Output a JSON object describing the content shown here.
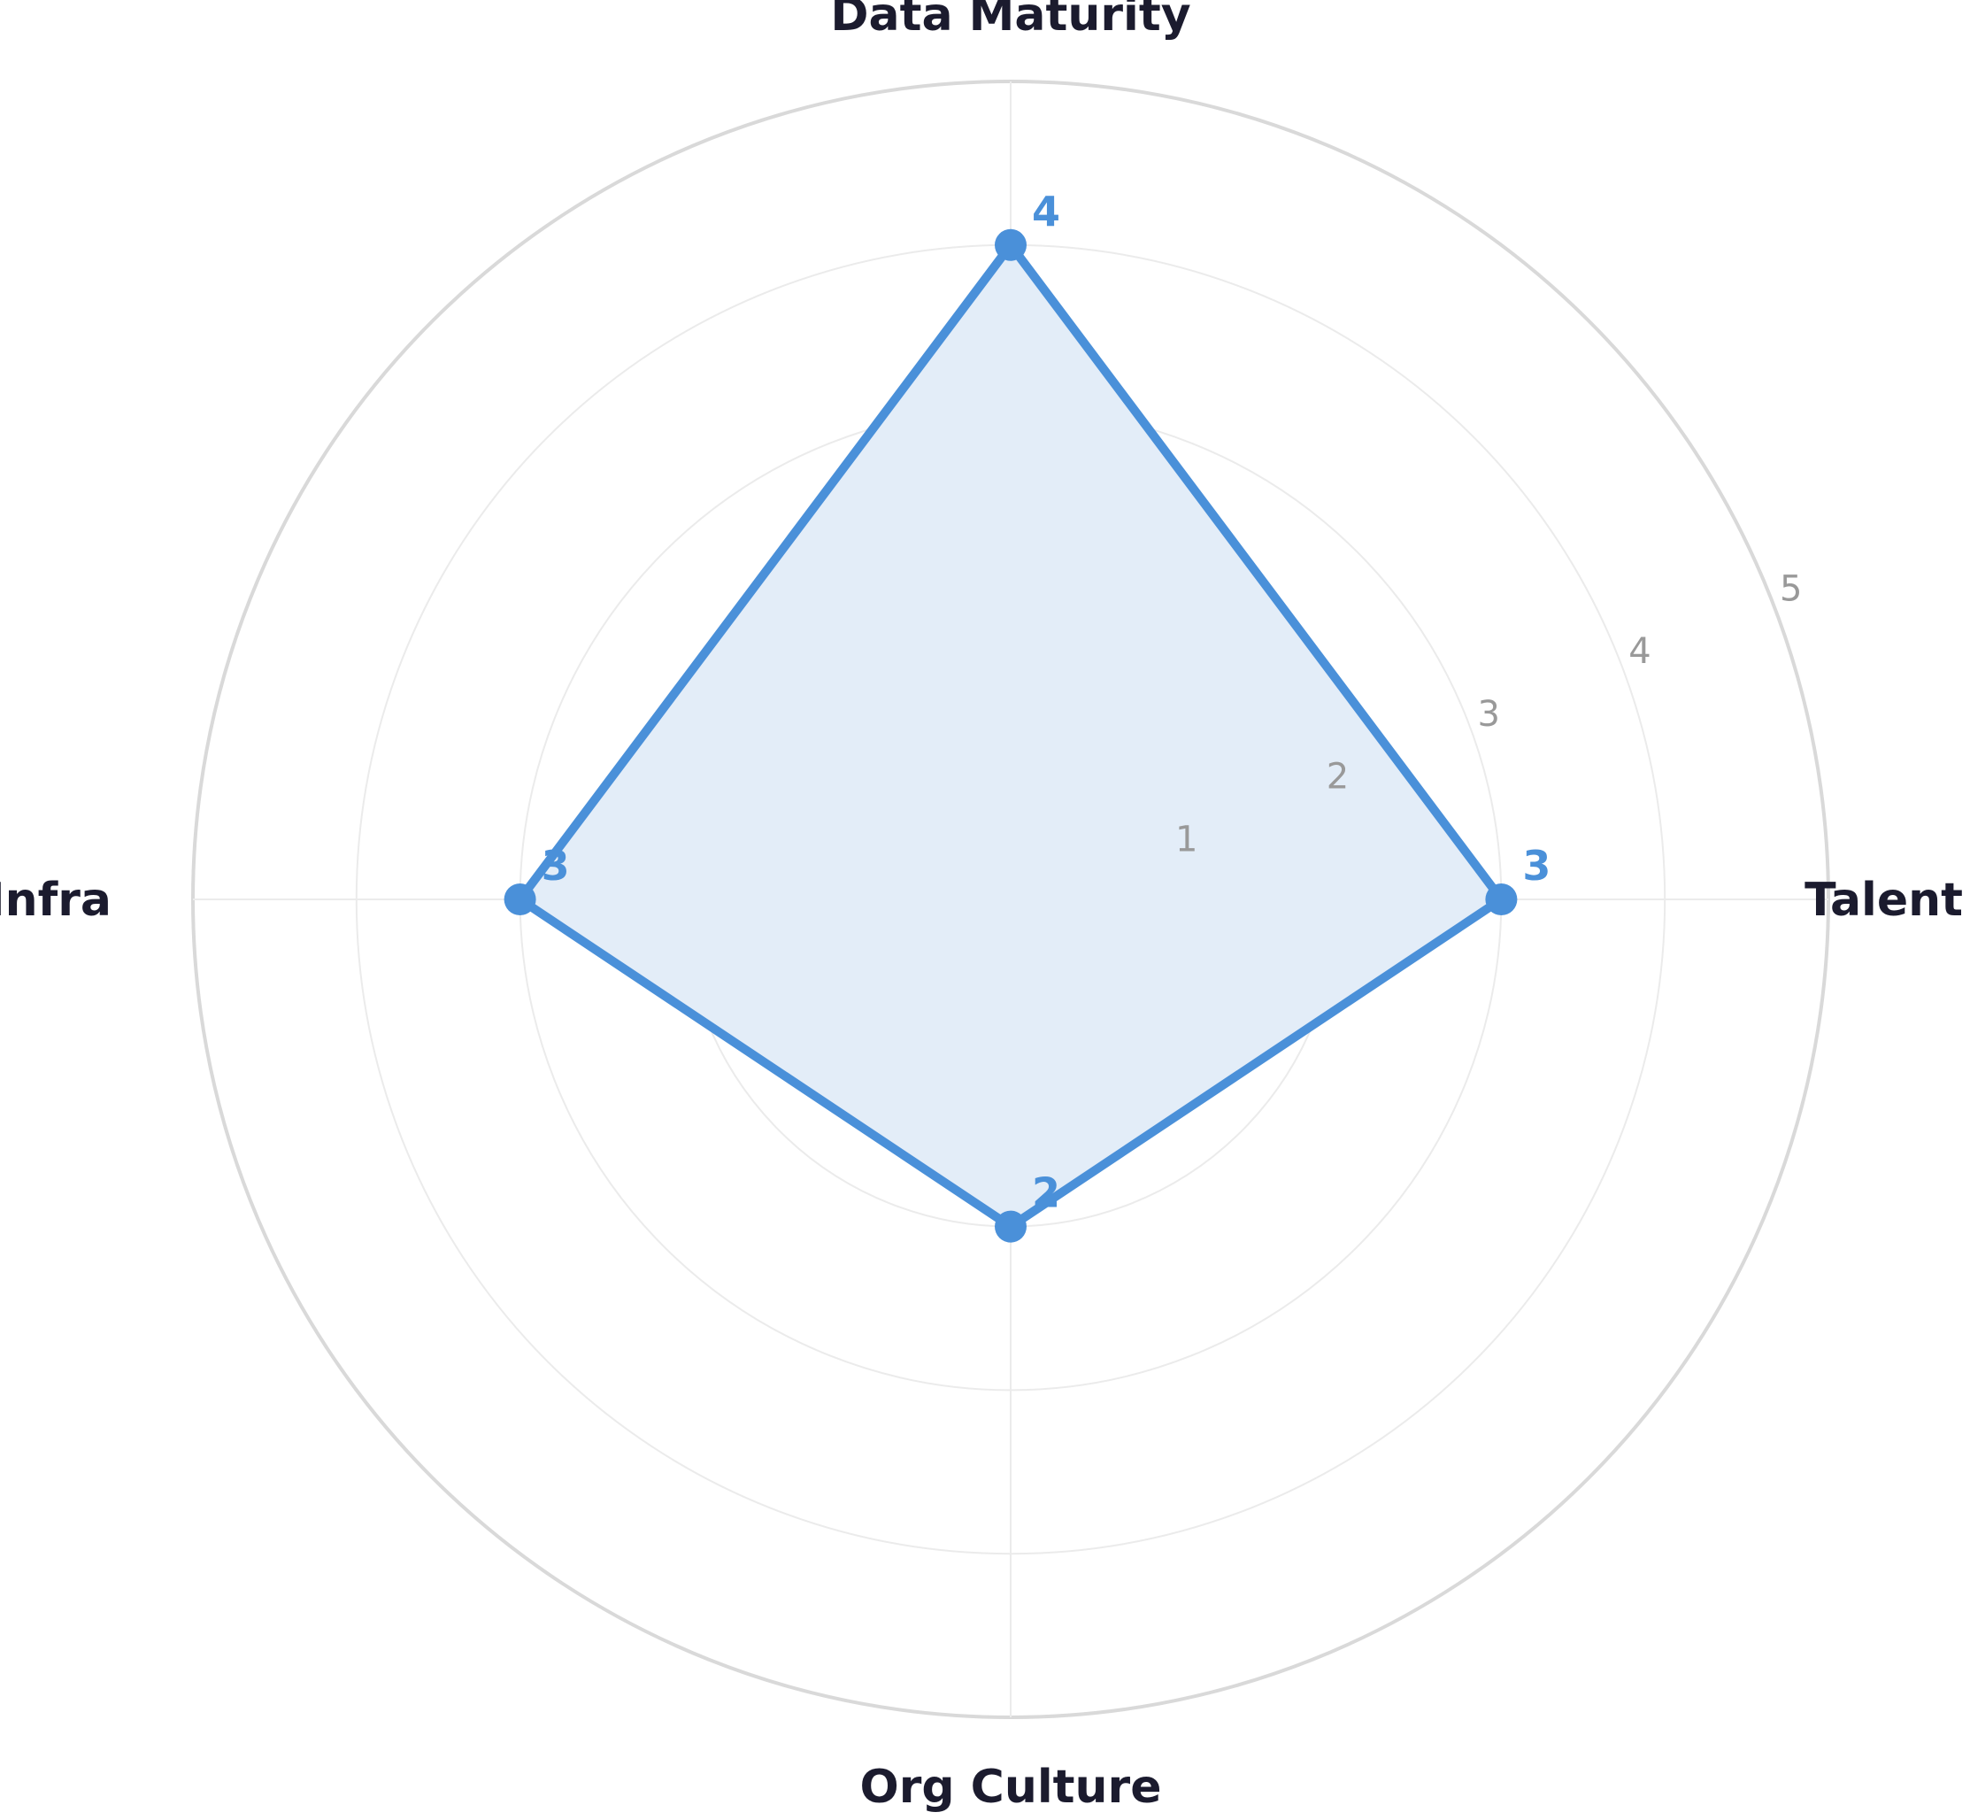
{
  "chart_data": {
    "type": "radar",
    "categories": [
      "Data Maturity",
      "Talent",
      "Org Culture",
      "Tech Infra"
    ],
    "series": [
      {
        "values": [
          4,
          3,
          2,
          3
        ]
      }
    ],
    "rlim": [
      0,
      5
    ],
    "rticks": [
      "1",
      "2",
      "3",
      "4",
      "5"
    ],
    "value_labels": [
      "4",
      "3",
      "2",
      "3"
    ],
    "grid": true,
    "legend": "none"
  },
  "colors": {
    "series_line": "#4A90D9",
    "series_fill": "#E3EDF8",
    "value_label": "#4A90D9",
    "category_label": "#1B1B2E",
    "tick_label": "#999999",
    "grid": "#EBEBEB",
    "outer_ring": "#D9D9D9"
  }
}
